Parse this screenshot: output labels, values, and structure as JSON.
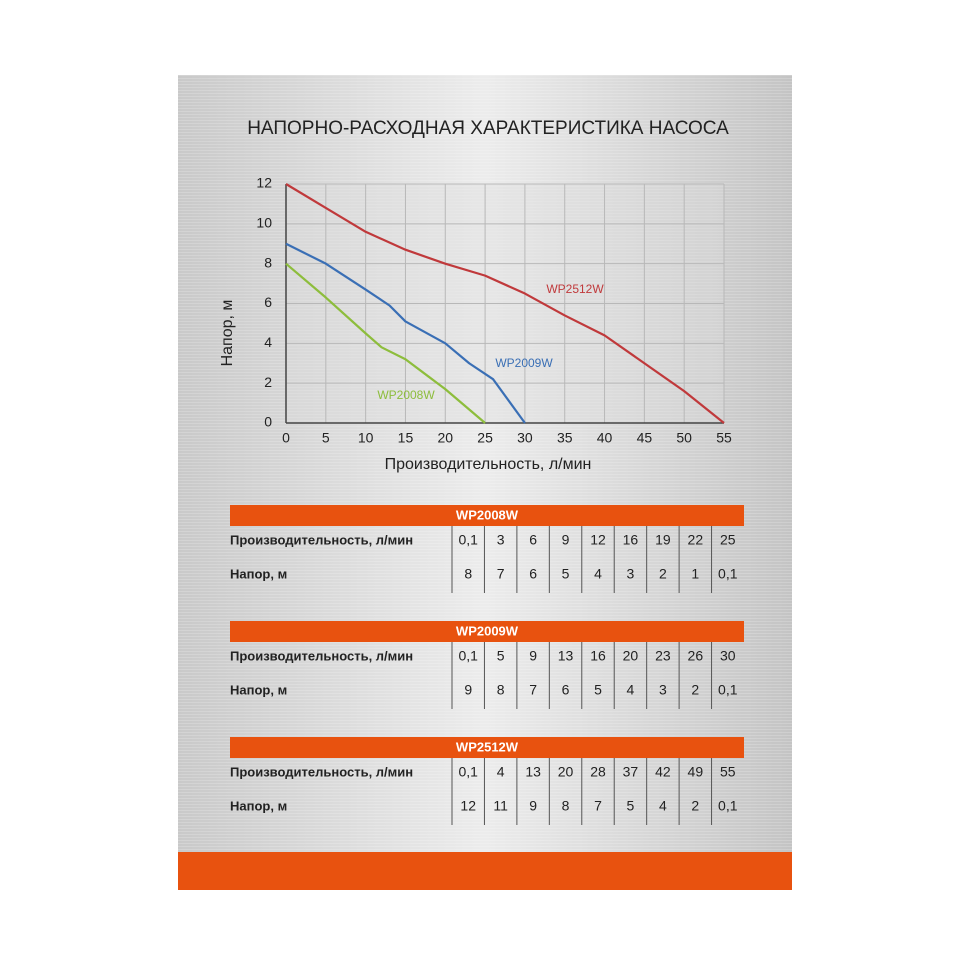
{
  "chart_data": {
    "type": "line",
    "title": "НАПОРНО-РАСХОДНАЯ ХАРАКТЕРИСТИКА НАСОСА",
    "x_label": "Производительность, л/мин",
    "y_label": "Напор, м",
    "xlim": [
      0,
      55
    ],
    "xticks": [
      0,
      5,
      10,
      15,
      20,
      25,
      30,
      35,
      40,
      45,
      50,
      55
    ],
    "ylim": [
      0,
      12
    ],
    "yticks": [
      0,
      2,
      4,
      6,
      8,
      10,
      12
    ],
    "grid": true,
    "series": [
      {
        "name": "WP2512W",
        "color": "#c0393b",
        "x": [
          0,
          5,
          10,
          15,
          20,
          25,
          30,
          35,
          40,
          45,
          50,
          55
        ],
        "values": [
          12,
          10.8,
          9.6,
          8.7,
          8,
          7.4,
          6.5,
          5.4,
          4.4,
          3,
          1.6,
          0
        ]
      },
      {
        "name": "WP2009W",
        "color": "#3a6fb5",
        "x": [
          0,
          5,
          10,
          13,
          15,
          20,
          23,
          26,
          30
        ],
        "values": [
          9,
          8,
          6.7,
          5.9,
          5.1,
          4,
          3,
          2.2,
          0
        ]
      },
      {
        "name": "WP2008W",
        "color": "#8dbd3c",
        "x": [
          0,
          5,
          10,
          12,
          15,
          18,
          20,
          25
        ],
        "values": [
          8,
          6.3,
          4.5,
          3.8,
          3.2,
          2.3,
          1.7,
          0
        ]
      }
    ]
  },
  "tables": [
    {
      "title": "WP2008W",
      "rows": [
        {
          "label": "Производительность, л/мин",
          "cells": [
            "0,1",
            "3",
            "6",
            "9",
            "12",
            "16",
            "19",
            "22",
            "25"
          ]
        },
        {
          "label": "Напор, м",
          "cells": [
            "8",
            "7",
            "6",
            "5",
            "4",
            "3",
            "2",
            "1",
            "0,1"
          ]
        }
      ]
    },
    {
      "title": "WP2009W",
      "rows": [
        {
          "label": "Производительность, л/мин",
          "cells": [
            "0,1",
            "5",
            "9",
            "13",
            "16",
            "20",
            "23",
            "26",
            "30"
          ]
        },
        {
          "label": "Напор, м",
          "cells": [
            "9",
            "8",
            "7",
            "6",
            "5",
            "4",
            "3",
            "2",
            "0,1"
          ]
        }
      ]
    },
    {
      "title": "WP2512W",
      "rows": [
        {
          "label": "Производительность, л/мин",
          "cells": [
            "0,1",
            "4",
            "13",
            "20",
            "28",
            "37",
            "42",
            "49",
            "55"
          ]
        },
        {
          "label": "Напор, м",
          "cells": [
            "12",
            "11",
            "9",
            "8",
            "7",
            "5",
            "4",
            "2",
            "0,1"
          ]
        }
      ]
    }
  ]
}
